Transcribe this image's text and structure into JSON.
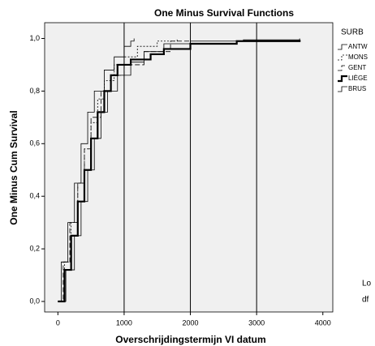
{
  "chart_data": {
    "type": "step",
    "title": "One Minus Survival Functions",
    "x_label": "Overschrijdingstermijn VI datum",
    "y_label": "One Minus Cum Survival",
    "legend_title": "SURB",
    "annotations": [
      "Lo",
      "df"
    ],
    "xlim": [
      -200,
      4150
    ],
    "ylim": [
      -0.04,
      1.06
    ],
    "xticks": [
      0,
      1000,
      2000,
      3000,
      4000
    ],
    "yticks": [
      {
        "value": 0,
        "label": "0,0"
      },
      {
        "value": 0.2,
        "label": "0,2"
      },
      {
        "value": 0.4,
        "label": "0,4"
      },
      {
        "value": 0.6,
        "label": "0,6"
      },
      {
        "value": 0.8,
        "label": "0,8"
      },
      {
        "value": 1.0,
        "label": "1,0"
      }
    ],
    "reference_lines_x": [
      1000,
      2000,
      3000
    ],
    "background": "#f0f0f0",
    "series": [
      {
        "name": "ANTW",
        "color": "#000000",
        "width": 0.8,
        "dash": "none",
        "x": [
          0,
          50,
          150,
          250,
          350,
          450,
          550,
          700,
          850,
          1000,
          1100,
          1150
        ],
        "values": [
          0,
          0.15,
          0.3,
          0.45,
          0.6,
          0.72,
          0.8,
          0.88,
          0.93,
          0.97,
          0.99,
          1.0
        ]
      },
      {
        "name": "MONS",
        "color": "#000000",
        "width": 0.8,
        "dash": "2 2",
        "x": [
          0,
          100,
          200,
          300,
          400,
          500,
          600,
          700,
          850,
          1000,
          1200,
          1500,
          1800
        ],
        "values": [
          0,
          0.15,
          0.3,
          0.45,
          0.58,
          0.68,
          0.77,
          0.84,
          0.9,
          0.93,
          0.97,
          0.99,
          1.0
        ]
      },
      {
        "name": "GENT",
        "color": "#000000",
        "width": 0.8,
        "dash": "6 3",
        "x": [
          0,
          80,
          180,
          300,
          400,
          500,
          650,
          800,
          1000,
          1300,
          1700,
          2000
        ],
        "values": [
          0,
          0.15,
          0.3,
          0.45,
          0.58,
          0.7,
          0.8,
          0.86,
          0.9,
          0.95,
          0.99,
          1.0
        ]
      },
      {
        "name": "LIÈGE",
        "color": "#000000",
        "width": 2.2,
        "dash": "none",
        "x": [
          0,
          100,
          200,
          300,
          400,
          500,
          600,
          700,
          800,
          900,
          1100,
          1400,
          1600,
          2000,
          2700,
          3650
        ],
        "values": [
          0,
          0.12,
          0.25,
          0.38,
          0.5,
          0.62,
          0.72,
          0.8,
          0.86,
          0.9,
          0.92,
          0.94,
          0.96,
          0.98,
          0.99,
          0.995
        ]
      },
      {
        "name": "BRUS",
        "color": "#000000",
        "width": 0.8,
        "dash": "none",
        "x": [
          0,
          120,
          250,
          350,
          450,
          550,
          650,
          750,
          900,
          1100,
          1300,
          1600,
          2000,
          2800,
          3650
        ],
        "values": [
          0,
          0.12,
          0.25,
          0.38,
          0.5,
          0.62,
          0.72,
          0.8,
          0.86,
          0.91,
          0.95,
          0.98,
          0.99,
          0.995,
          1.0
        ]
      }
    ]
  }
}
